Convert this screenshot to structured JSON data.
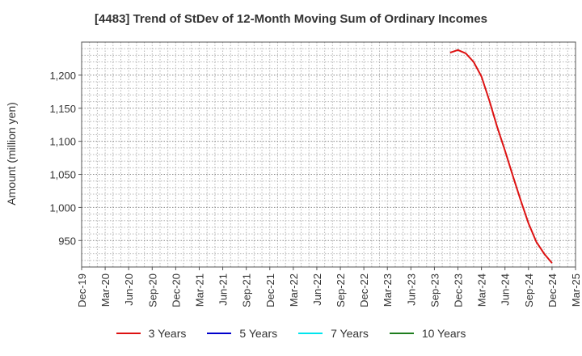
{
  "chart_data": {
    "type": "line",
    "title": "[4483]  Trend of StDev of 12-Month Moving Sum of Ordinary Incomes",
    "xlabel": "",
    "ylabel": "Amount (million yen)",
    "x_ticks": [
      "Dec-19",
      "Mar-20",
      "Jun-20",
      "Sep-20",
      "Dec-20",
      "Mar-21",
      "Jun-21",
      "Sep-21",
      "Dec-21",
      "Mar-22",
      "Jun-22",
      "Sep-22",
      "Dec-22",
      "Mar-23",
      "Jun-23",
      "Sep-23",
      "Dec-23",
      "Mar-24",
      "Jun-24",
      "Sep-24",
      "Dec-24",
      "Mar-25"
    ],
    "y_ticks": [
      950,
      1000,
      1050,
      1100,
      1150,
      1200
    ],
    "ylim": [
      910,
      1250
    ],
    "grid": true,
    "legend_position": "bottom",
    "series": [
      {
        "name": "3 Years",
        "color": "#dd1111",
        "x": [
          "Nov-23",
          "Dec-23",
          "Jan-24",
          "Feb-24",
          "Mar-24",
          "Apr-24",
          "May-24",
          "Jun-24",
          "Jul-24",
          "Aug-24",
          "Sep-24",
          "Oct-24",
          "Nov-24",
          "Dec-24"
        ],
        "values": [
          1234,
          1238,
          1233,
          1220,
          1198,
          1162,
          1122,
          1086,
          1048,
          1011,
          976,
          948,
          930,
          916
        ]
      },
      {
        "name": "5 Years",
        "color": "#0000cc",
        "x": [],
        "values": []
      },
      {
        "name": "7 Years",
        "color": "#00e5ee",
        "x": [],
        "values": []
      },
      {
        "name": "10 Years",
        "color": "#1e7d1e",
        "x": [],
        "values": []
      }
    ]
  }
}
